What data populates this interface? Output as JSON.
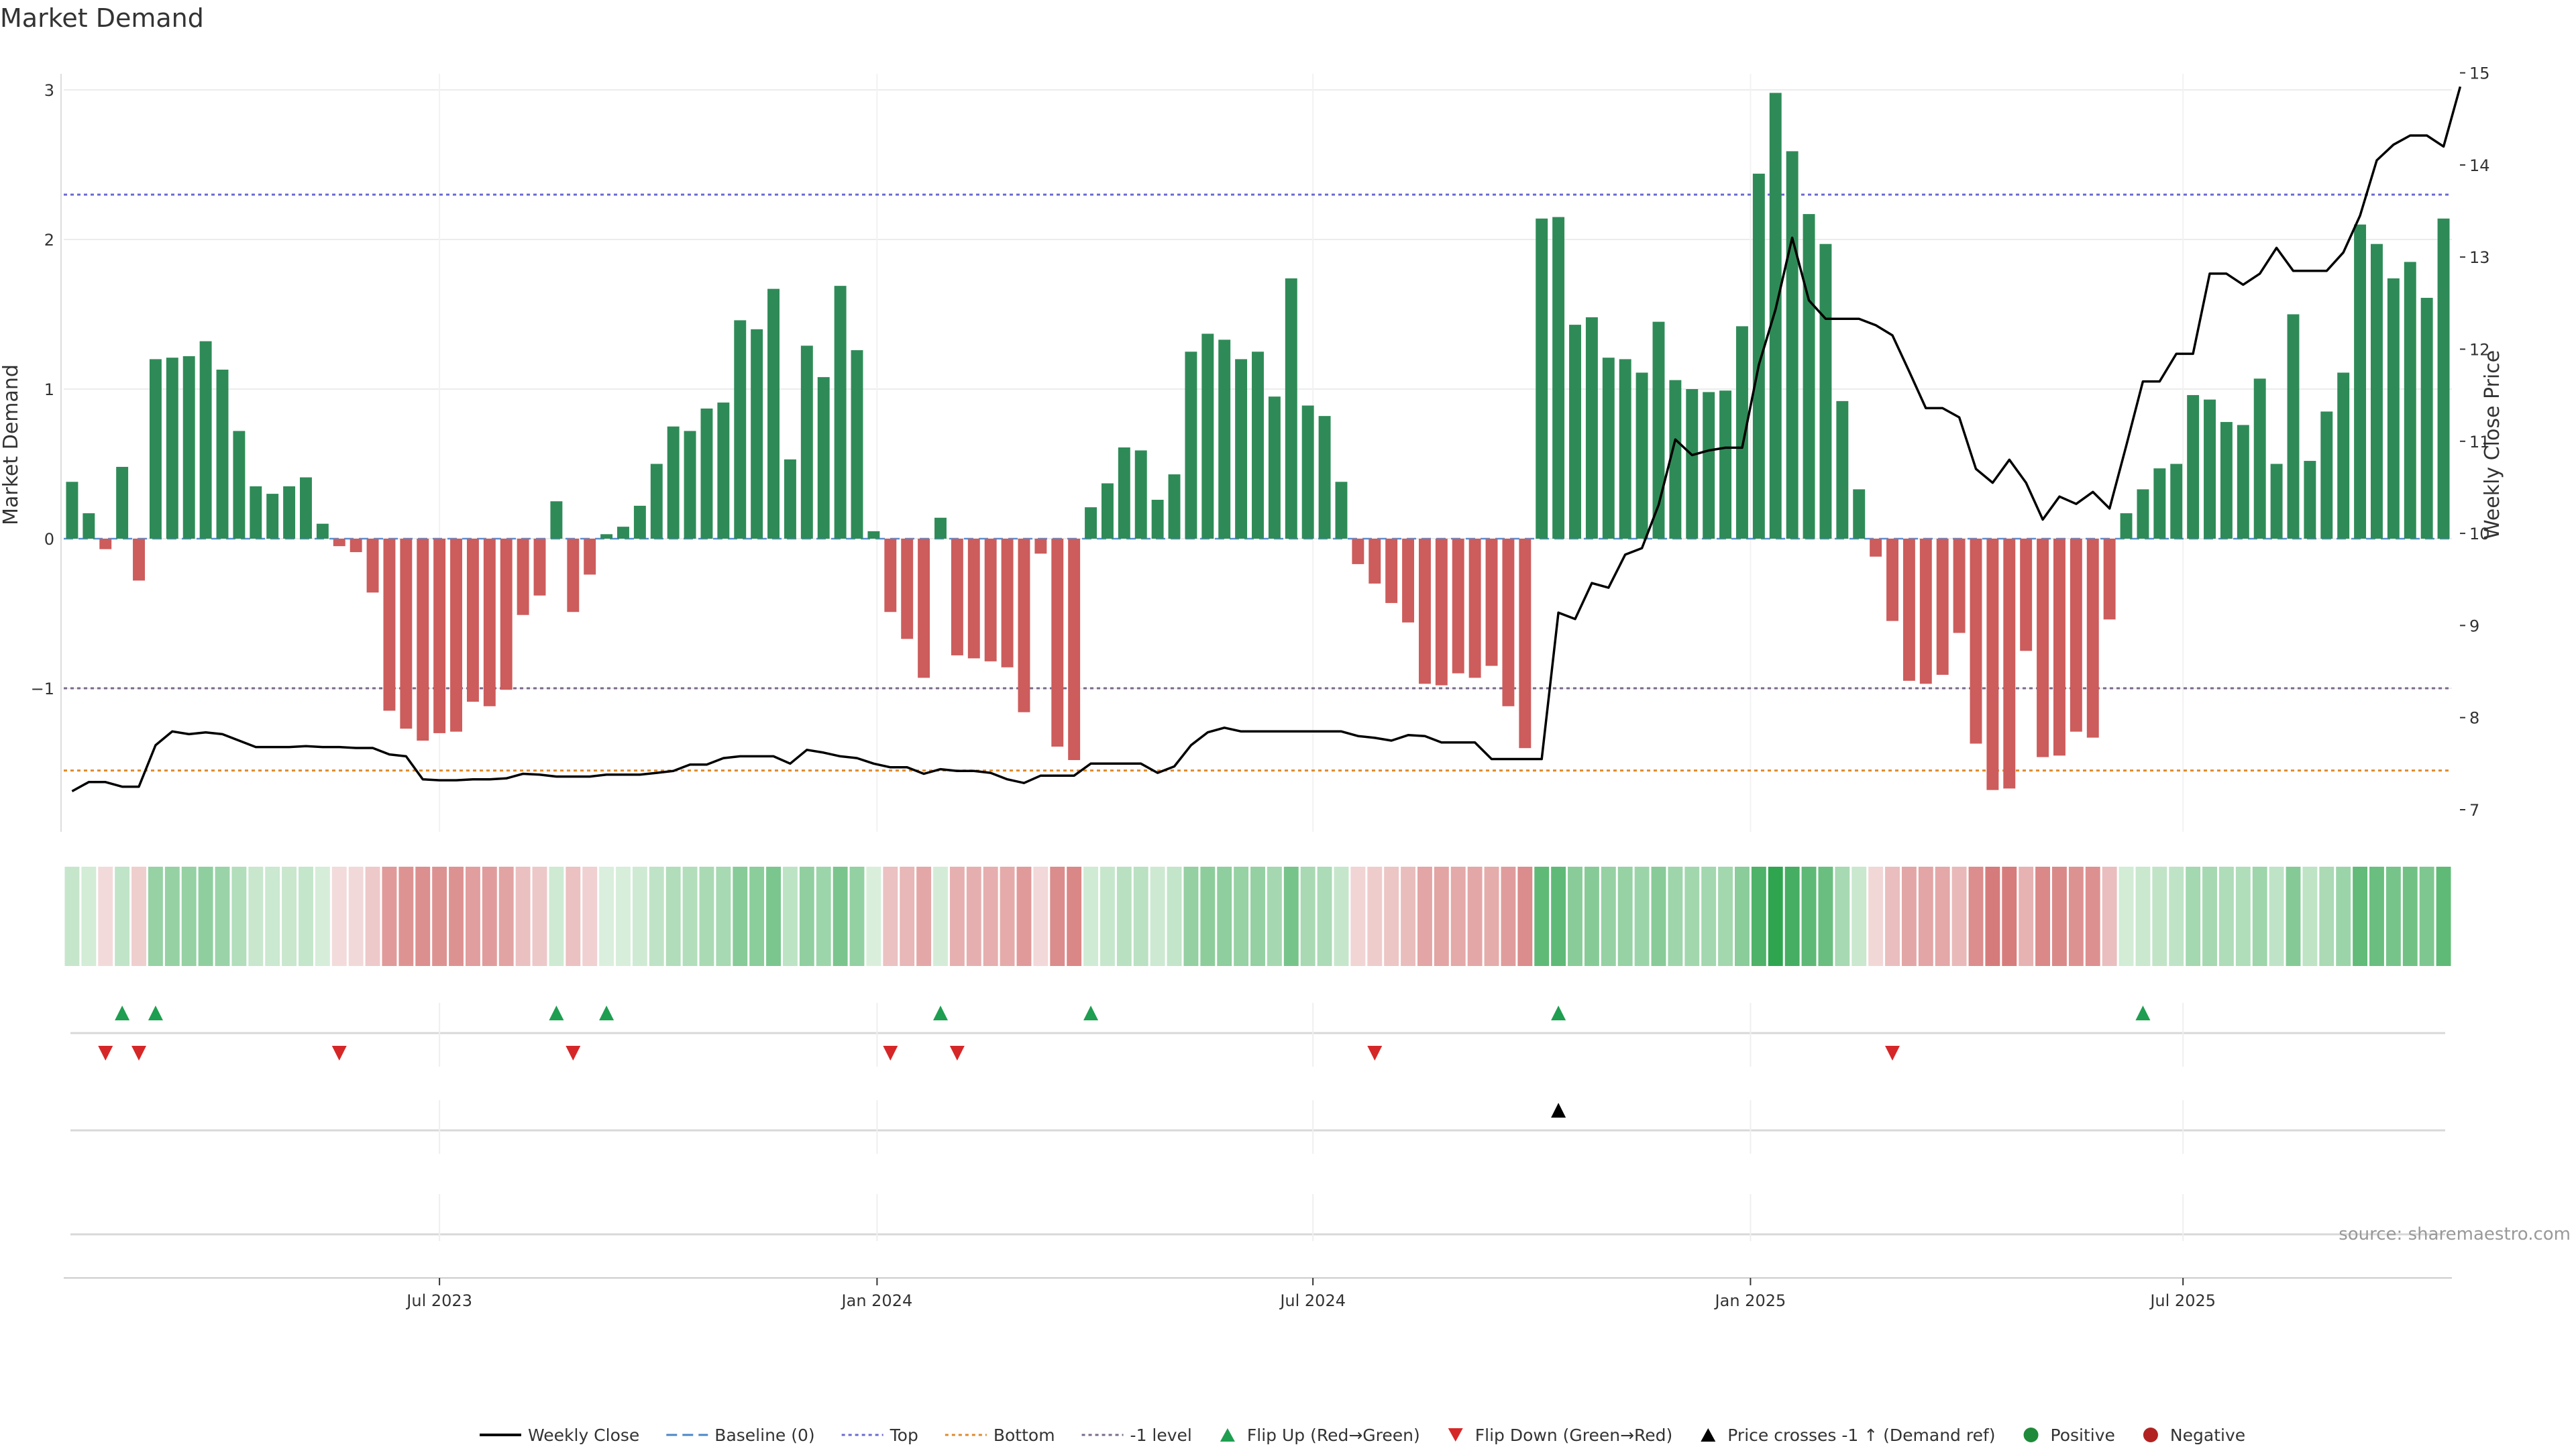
{
  "title": "Market Demand",
  "source": "source: sharemaestro.com",
  "chart_data": {
    "type": "bar",
    "title": "Market Demand",
    "ylabel_left": "Market Demand",
    "ylabel_right": "Weekly Close Price",
    "ylim_left": [
      -1.95,
      3.0
    ],
    "ylim_right": [
      6.7,
      15.0
    ],
    "left_ticks": [
      "−1",
      "0",
      "1",
      "2",
      "3"
    ],
    "right_ticks": [
      "7",
      "8",
      "9",
      "10",
      "11",
      "12",
      "13",
      "14",
      "15"
    ],
    "x_ticks": [
      "Jul 2023",
      "Jan 2024",
      "Jul 2024",
      "Jan 2025",
      "Jul 2025"
    ],
    "x_tick_weeks": [
      22.5,
      48.7,
      74.8,
      101,
      126.9
    ],
    "reference_lines": [
      {
        "name": "Top",
        "value": 2.3,
        "color": "#6a6ad4"
      },
      {
        "name": "-1 level",
        "value": -1.0,
        "color": "#7a6a8a"
      },
      {
        "name": "Bottom",
        "value": -1.55,
        "color": "#e08a2a"
      }
    ],
    "bar_colors": {
      "positive": "#2e8b57",
      "negative": "#cd5c5c"
    },
    "demand": [
      0.38,
      0.17,
      -0.07,
      0.48,
      -0.28,
      1.2,
      1.21,
      1.22,
      1.32,
      1.13,
      0.72,
      0.35,
      0.3,
      0.35,
      0.41,
      0.1,
      -0.05,
      -0.09,
      -0.36,
      -1.15,
      -1.27,
      -1.35,
      -1.3,
      -1.29,
      -1.09,
      -1.12,
      -1.01,
      -0.51,
      -0.38,
      0.25,
      -0.49,
      -0.24,
      0.03,
      0.08,
      0.22,
      0.5,
      0.75,
      0.72,
      0.87,
      0.91,
      1.46,
      1.4,
      1.67,
      0.53,
      1.29,
      1.08,
      1.69,
      1.26,
      0.05,
      -0.49,
      -0.67,
      -0.93,
      0.14,
      -0.78,
      -0.8,
      -0.82,
      -0.86,
      -1.16,
      -0.1,
      -1.39,
      -1.48,
      0.21,
      0.37,
      0.61,
      0.59,
      0.26,
      0.43,
      1.25,
      1.37,
      1.33,
      1.2,
      1.25,
      0.95,
      1.74,
      0.89,
      0.82,
      0.38,
      -0.17,
      -0.3,
      -0.43,
      -0.56,
      -0.97,
      -0.98,
      -0.9,
      -0.93,
      -0.85,
      -1.12,
      -1.4,
      2.14,
      2.15,
      1.43,
      1.48,
      1.21,
      1.2,
      1.11,
      1.45,
      1.06,
      1.0,
      0.98,
      0.99,
      1.42,
      2.44,
      2.98,
      2.59,
      2.17,
      1.97,
      0.92,
      0.33,
      -0.12,
      -0.55,
      -0.95,
      -0.97,
      -0.91,
      -0.63,
      -1.37,
      -1.68,
      -1.67,
      -0.75,
      -1.46,
      -1.45,
      -1.29,
      -1.33,
      -0.54,
      0.17,
      0.33,
      0.47,
      0.5,
      0.96,
      0.93,
      0.78,
      0.76,
      1.07,
      0.5,
      1.5,
      0.52,
      0.85,
      1.11,
      2.1,
      1.97,
      1.74,
      1.85,
      1.61,
      2.14
    ],
    "weekly_close": [
      7.2,
      7.3,
      7.3,
      7.25,
      7.25,
      7.7,
      7.85,
      7.82,
      7.84,
      7.82,
      7.75,
      7.68,
      7.68,
      7.68,
      7.69,
      7.68,
      7.68,
      7.67,
      7.67,
      7.6,
      7.58,
      7.33,
      7.32,
      7.32,
      7.33,
      7.33,
      7.34,
      7.39,
      7.38,
      7.36,
      7.36,
      7.36,
      7.38,
      7.38,
      7.38,
      7.4,
      7.42,
      7.49,
      7.49,
      7.56,
      7.58,
      7.58,
      7.58,
      7.5,
      7.65,
      7.62,
      7.58,
      7.56,
      7.5,
      7.46,
      7.46,
      7.39,
      7.44,
      7.42,
      7.42,
      7.4,
      7.33,
      7.29,
      7.37,
      7.37,
      7.37,
      7.5,
      7.5,
      7.5,
      7.5,
      7.4,
      7.47,
      7.7,
      7.84,
      7.89,
      7.85,
      7.85,
      7.85,
      7.85,
      7.85,
      7.85,
      7.85,
      7.8,
      7.78,
      7.75,
      7.81,
      7.8,
      7.73,
      7.73,
      7.73,
      7.55,
      7.55,
      7.55,
      7.55,
      9.14,
      9.07,
      9.46,
      9.41,
      9.77,
      9.84,
      10.31,
      11.02,
      10.85,
      10.9,
      10.93,
      10.93,
      11.83,
      12.43,
      13.21,
      12.53,
      12.33,
      12.33,
      12.33,
      12.26,
      12.15,
      11.76,
      11.36,
      11.36,
      11.26,
      10.7,
      10.55,
      10.8,
      10.55,
      10.15,
      10.4,
      10.32,
      10.45,
      10.27,
      10.95,
      11.65,
      11.65,
      11.95,
      11.95,
      12.82,
      12.82,
      12.7,
      12.82,
      13.1,
      12.85,
      12.85,
      12.85,
      13.05,
      13.45,
      14.05,
      14.22,
      14.32,
      14.32,
      14.2,
      14.85
    ],
    "flip_up_weeks": [
      3,
      5,
      29,
      32,
      52,
      61,
      89,
      124
    ],
    "flip_down_weeks": [
      2,
      4,
      16,
      30,
      49,
      53,
      78,
      109
    ],
    "price_cross_weeks": [
      89
    ],
    "legend": [
      {
        "label": "Weekly Close",
        "kind": "line",
        "color": "#000000"
      },
      {
        "label": "Baseline (0)",
        "kind": "dash",
        "color": "#4a86c8"
      },
      {
        "label": "Top",
        "kind": "dot",
        "color": "#6a6ad4"
      },
      {
        "label": "Bottom",
        "kind": "dot",
        "color": "#e08a2a"
      },
      {
        "label": "-1 level",
        "kind": "dot",
        "color": "#7a6a8a"
      },
      {
        "label": "Flip Up (Red→Green)",
        "kind": "tri-up",
        "color": "#1e9e50"
      },
      {
        "label": "Flip Down (Green→Red)",
        "kind": "tri-down",
        "color": "#d62728"
      },
      {
        "label": "Price crosses -1 ↑ (Demand ref)",
        "kind": "tri-up",
        "color": "#000000"
      },
      {
        "label": "Positive",
        "kind": "dot-marker",
        "color": "#1e8a3a"
      },
      {
        "label": "Negative",
        "kind": "dot-marker",
        "color": "#b22222"
      }
    ]
  }
}
